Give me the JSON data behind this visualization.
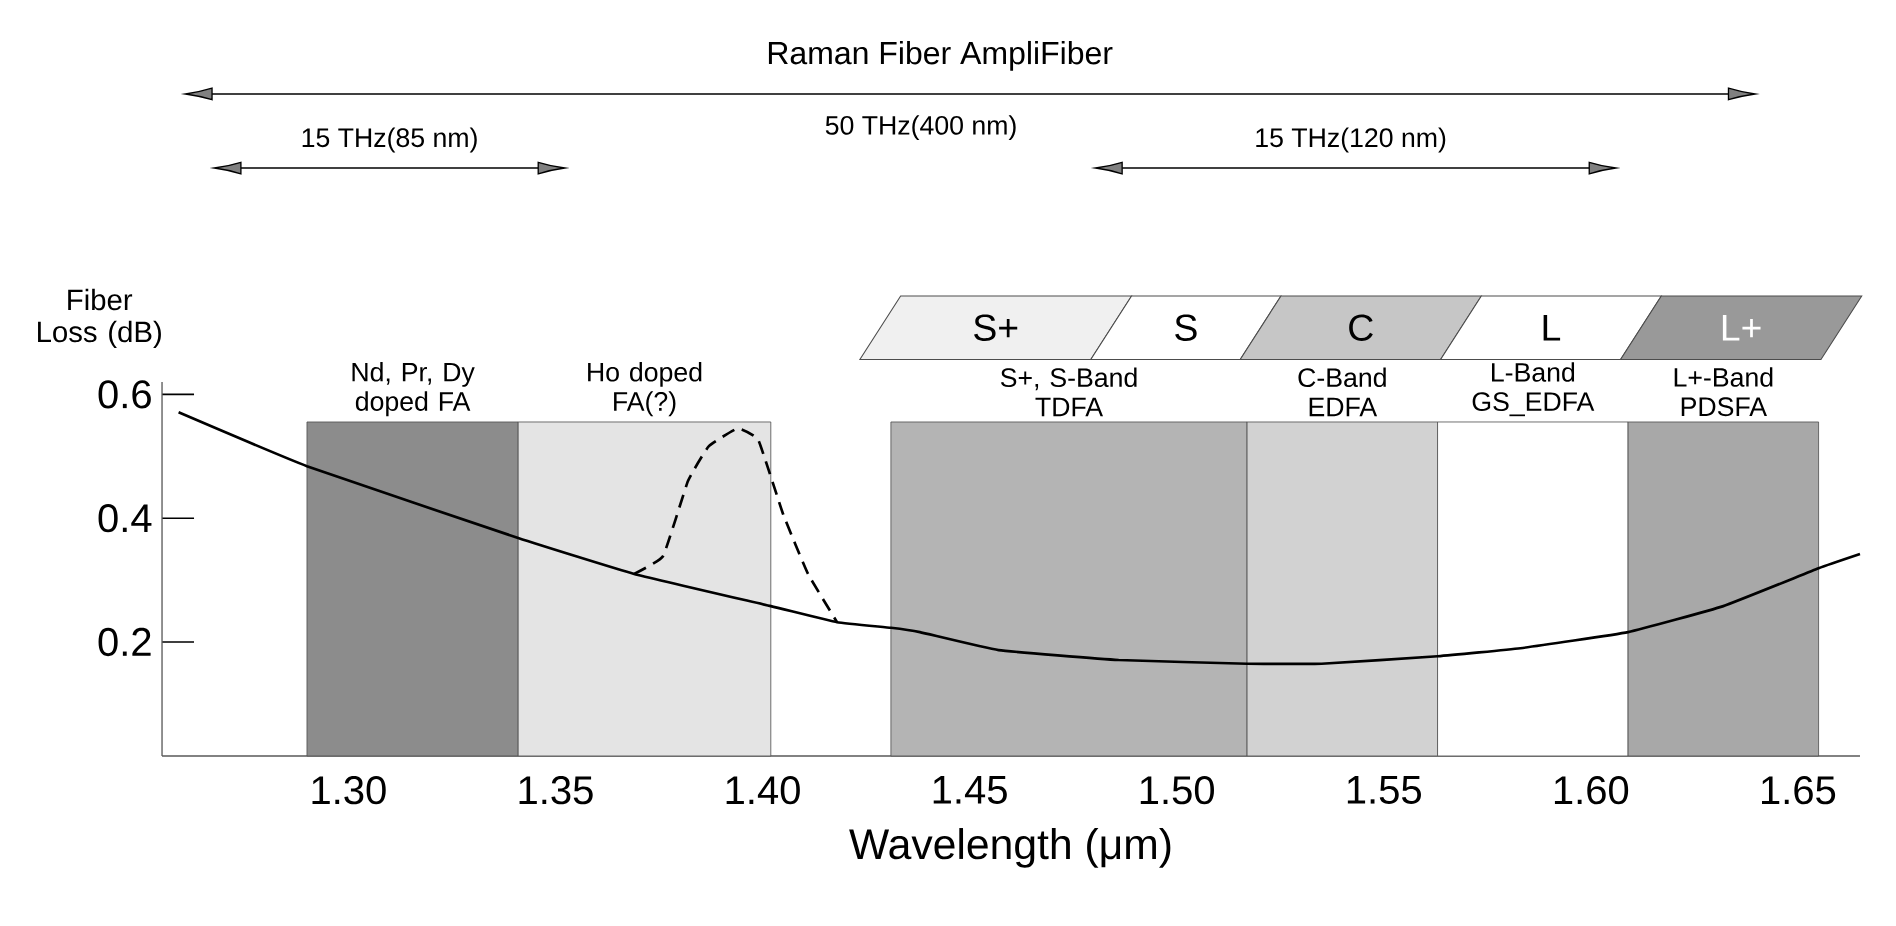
{
  "chart_data": {
    "type": "line",
    "xlabel": "Wavelength (μm)",
    "ylabel": "Fiber Loss (dB)",
    "xlim": [
      1.255,
      1.665
    ],
    "ylim": [
      0.016,
      0.62
    ],
    "xticks": [
      {
        "value": 1.3,
        "label": "1.30"
      },
      {
        "value": 1.35,
        "label": "1.35"
      },
      {
        "value": 1.4,
        "label": "1.40"
      },
      {
        "value": 1.45,
        "label": "1.45"
      },
      {
        "value": 1.5,
        "label": "1.50"
      },
      {
        "value": 1.55,
        "label": "1.55"
      },
      {
        "value": 1.6,
        "label": "1.60"
      },
      {
        "value": 1.65,
        "label": "1.65"
      }
    ],
    "yticks": [
      0.2,
      0.4,
      0.6
    ],
    "grid": false,
    "marker": "none",
    "series": [
      {
        "color": "#000000",
        "line_style": "solid",
        "x": [
          1.259,
          1.29,
          1.341,
          1.369,
          1.402,
          1.418,
          1.431,
          1.438,
          1.457,
          1.486,
          1.517,
          1.535,
          1.563,
          1.583,
          1.609,
          1.632,
          1.655,
          1.665
        ],
        "values": [
          0.571,
          0.484,
          0.368,
          0.31,
          0.258,
          0.232,
          0.223,
          0.216,
          0.187,
          0.171,
          0.165,
          0.165,
          0.177,
          0.19,
          0.216,
          0.258,
          0.319,
          0.342
        ]
      },
      {
        "color": "#000000",
        "line_style": "dashed",
        "x": [
          1.369,
          1.376,
          1.382,
          1.387,
          1.394,
          1.399,
          1.405,
          1.411,
          1.418
        ],
        "values": [
          0.31,
          0.339,
          0.46,
          0.516,
          0.545,
          0.526,
          0.406,
          0.31,
          0.232
        ]
      }
    ],
    "bands": [
      {
        "axis": "x",
        "from": 1.29,
        "to": 1.341,
        "label": "Nd, Pr, Dy doped FA",
        "color": "#8c8c8c"
      },
      {
        "axis": "x",
        "from": 1.341,
        "to": 1.402,
        "label": "Ho doped FA(?)",
        "color": "#e4e4e4"
      },
      {
        "axis": "x",
        "from": 1.431,
        "to": 1.517,
        "label": "S+, S-Band TDFA",
        "color": "#b4b4b4"
      },
      {
        "axis": "x",
        "from": 1.517,
        "to": 1.563,
        "label": "C-Band EDFA",
        "color": "#d2d2d2"
      },
      {
        "axis": "x",
        "from": 1.563,
        "to": 1.609,
        "label": "L-Band GS_EDFA",
        "color": "#ffffff"
      },
      {
        "axis": "x",
        "from": 1.609,
        "to": 1.655,
        "label": "L+-Band PDSFA",
        "color": "#a8a8a8"
      }
    ],
    "annotations": [
      "Raman Fiber AmpliFiber",
      "50 THz(400 nm)",
      "15 THz(85 nm)",
      "15 THz(120 nm)",
      "S+",
      "S",
      "C",
      "L",
      "L+"
    ]
  }
}
